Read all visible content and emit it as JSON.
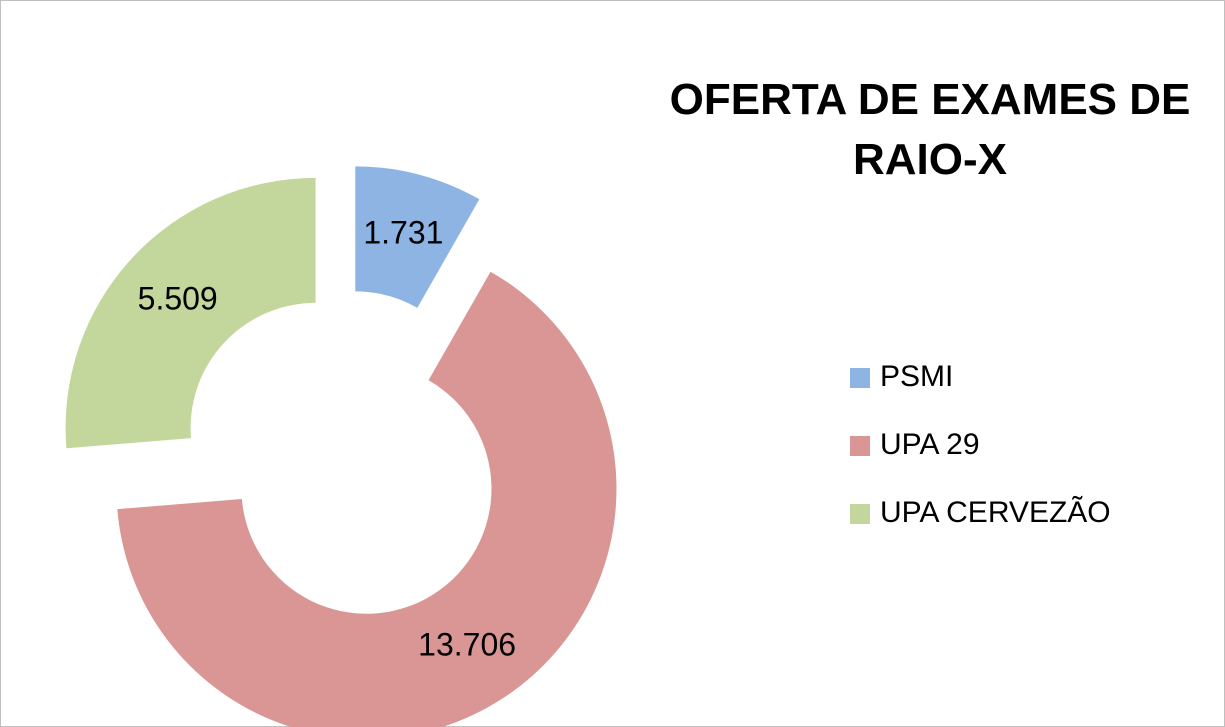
{
  "chart_data": {
    "type": "donut",
    "title": "OFERTA DE EXAMES DE RAIO-X",
    "categories": [
      "PSMI",
      "UPA 29",
      "UPA CERVEZÃO"
    ],
    "values": [
      1731,
      13706,
      5509
    ],
    "value_labels": [
      "1.731",
      "13.706",
      "5.509"
    ],
    "colors": [
      "#8eb4e3",
      "#d99694",
      "#c3d69b"
    ],
    "legend": "right"
  }
}
